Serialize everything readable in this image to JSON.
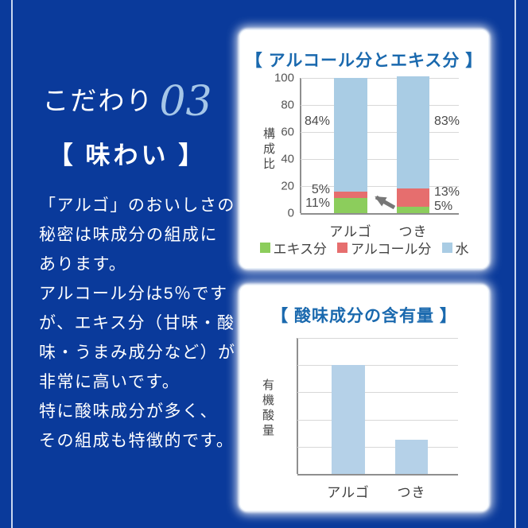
{
  "page": {
    "background_color": "#0a3a9b",
    "accent_line_color": "#ebf3ff"
  },
  "left_panel": {
    "heading": {
      "kodawari": "こだわり",
      "number": "03"
    },
    "subheading": "【 味わい 】",
    "lines": [
      "「アルゴ」のおいしさの",
      "秘密は味成分の組成に",
      "あります。",
      "アルコール分は5％です",
      "が、エキス分（甘味・酸",
      "味・うまみ成分など）が",
      "非常に高いです。",
      "特に酸味成分が多く、",
      "その組成も特徴的です。"
    ]
  },
  "chart_data": [
    {
      "type": "bar",
      "stacked": true,
      "title": "【 アルコール分とエキス分 】",
      "title_color": "#1a69ae",
      "categories": [
        "アルゴ",
        "つき"
      ],
      "series": [
        {
          "name": "エキス分",
          "color": "#8ccd5c",
          "values": [
            11,
            5
          ]
        },
        {
          "name": "アルコール分",
          "color": "#e66e6e",
          "values": [
            5,
            13
          ]
        },
        {
          "name": "水",
          "color": "#a9cce4",
          "values": [
            84,
            83
          ]
        }
      ],
      "ylabel": "構成比",
      "ylim": [
        0,
        100
      ],
      "yticks": [
        0,
        20,
        40,
        60,
        80,
        100
      ],
      "grid": true,
      "legend_position": "bottom",
      "data_labels": [
        "84%",
        "5%",
        "11%",
        "83%",
        "13%",
        "5%"
      ],
      "annotation": "gray arrow pointing from つき bar toward アルゴ bar lower segments"
    },
    {
      "type": "bar",
      "title": "【 酸味成分の含有量 】",
      "title_color": "#1a69ae",
      "categories": [
        "アルゴ",
        "つき"
      ],
      "values_pct_of_axis": [
        80,
        25
      ],
      "bar_color": "#b5d1e8",
      "ylabel": "有機酸量",
      "yticks": [],
      "grid": true,
      "gridline_count": 6
    }
  ]
}
